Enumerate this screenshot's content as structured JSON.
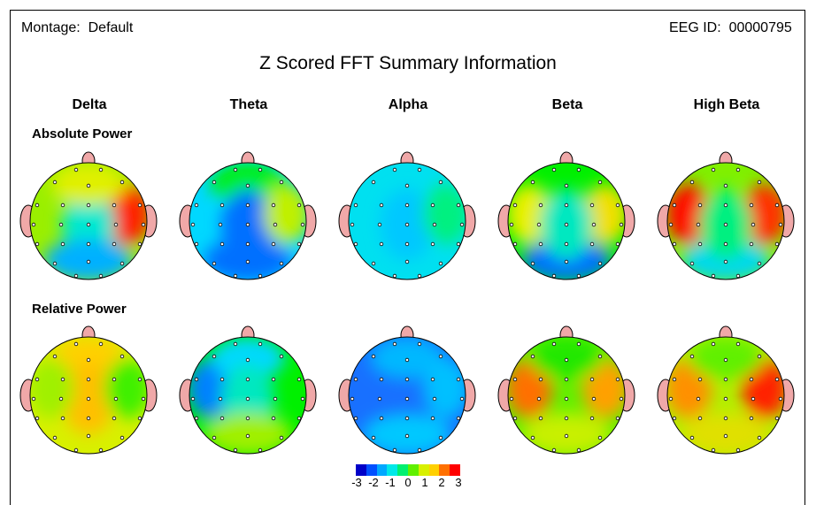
{
  "header": {
    "montage_label": "Montage:",
    "montage_value": "Default",
    "eeg_label": "EEG ID:",
    "eeg_value": "00000795",
    "title": "Z Scored FFT Summary Information"
  },
  "bands": [
    "Delta",
    "Theta",
    "Alpha",
    "Beta",
    "High Beta"
  ],
  "rows": [
    {
      "label": "Absolute Power",
      "maps": [
        {
          "base": "#9aef00",
          "blobs": [
            {
              "pos": "right",
              "color": "#ff2000"
            },
            {
              "pos": "center",
              "color": "#00e8d0"
            },
            {
              "pos": "top",
              "color": "#e0f000"
            },
            {
              "pos": "back",
              "color": "#00b0ff"
            }
          ]
        },
        {
          "base": "#00d8ff",
          "blobs": [
            {
              "pos": "top",
              "color": "#00f000"
            },
            {
              "pos": "center",
              "color": "#0070ff"
            },
            {
              "pos": "back",
              "color": "#0070ff"
            },
            {
              "pos": "right",
              "color": "#c0f000"
            }
          ]
        },
        {
          "base": "#00e0f0",
          "blobs": [
            {
              "pos": "center",
              "color": "#00c8ff"
            },
            {
              "pos": "right",
              "color": "#00f080"
            }
          ]
        },
        {
          "base": "#00f000",
          "blobs": [
            {
              "pos": "left",
              "color": "#e8f000"
            },
            {
              "pos": "right",
              "color": "#f0e000"
            },
            {
              "pos": "back",
              "color": "#0070ff"
            },
            {
              "pos": "center",
              "color": "#00e8c0"
            }
          ]
        },
        {
          "base": "#80f000",
          "blobs": [
            {
              "pos": "left",
              "color": "#ff1000"
            },
            {
              "pos": "right",
              "color": "#ff3000"
            },
            {
              "pos": "back",
              "color": "#00d8f0"
            },
            {
              "pos": "center",
              "color": "#00f080"
            }
          ]
        }
      ]
    },
    {
      "label": "Relative Power",
      "maps": [
        {
          "base": "#d8f000",
          "blobs": [
            {
              "pos": "top",
              "color": "#ffd000"
            },
            {
              "pos": "center",
              "color": "#ffc000"
            },
            {
              "pos": "right",
              "color": "#40f000"
            },
            {
              "pos": "left",
              "color": "#a0f000"
            }
          ]
        },
        {
          "base": "#00f000",
          "blobs": [
            {
              "pos": "left",
              "color": "#0080ff"
            },
            {
              "pos": "top",
              "color": "#00d8ff"
            },
            {
              "pos": "center",
              "color": "#00e8c0"
            },
            {
              "pos": "back",
              "color": "#a0f000"
            }
          ]
        },
        {
          "base": "#1870ff",
          "blobs": [
            {
              "pos": "top",
              "color": "#00b8ff"
            },
            {
              "pos": "right",
              "color": "#00c0ff"
            },
            {
              "pos": "back",
              "color": "#00c8ff"
            }
          ]
        },
        {
          "base": "#60f000",
          "blobs": [
            {
              "pos": "left",
              "color": "#ff7000"
            },
            {
              "pos": "right",
              "color": "#ffa000"
            },
            {
              "pos": "back",
              "color": "#c8f000"
            },
            {
              "pos": "top",
              "color": "#20e800"
            }
          ]
        },
        {
          "base": "#b0f000",
          "blobs": [
            {
              "pos": "left",
              "color": "#ff9000"
            },
            {
              "pos": "right",
              "color": "#ff2000"
            },
            {
              "pos": "back",
              "color": "#e0e000"
            },
            {
              "pos": "top",
              "color": "#60f000"
            }
          ]
        }
      ]
    }
  ],
  "color_scale": {
    "colors": [
      "#0000c8",
      "#0050ff",
      "#00a8ff",
      "#00e8e8",
      "#00f070",
      "#60f000",
      "#d8f000",
      "#ffd000",
      "#ff7000",
      "#ff0000"
    ],
    "ticks": [
      "-3",
      "-2",
      "-1",
      "0",
      "1",
      "2",
      "3"
    ]
  }
}
